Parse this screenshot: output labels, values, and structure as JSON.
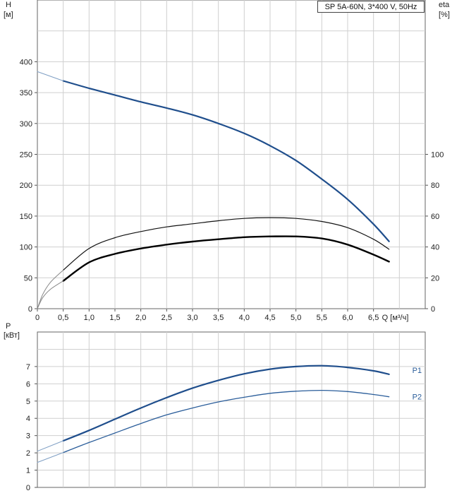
{
  "chart_data": [
    {
      "type": "line",
      "title": "SP 5A-60N, 3*400 V, 50Hz",
      "ylabel": "H",
      "yunit": "[м]",
      "y2label": "eta",
      "y2unit": "[%]",
      "xlabel": "Q [м³/ч]",
      "xlim": [
        0,
        7.5
      ],
      "ylim": [
        0,
        500
      ],
      "y2lim": [
        0,
        200
      ],
      "grid": true,
      "xticks": [
        "0",
        "0,5",
        "1,0",
        "1,5",
        "2,0",
        "2,5",
        "3,0",
        "3,5",
        "4,0",
        "4,5",
        "5,0",
        "5,5",
        "6,0",
        "6,5"
      ],
      "xtick_values": [
        0,
        0.5,
        1.0,
        1.5,
        2.0,
        2.5,
        3.0,
        3.5,
        4.0,
        4.5,
        5.0,
        5.5,
        6.0,
        6.5
      ],
      "yticks": [
        "0",
        "50",
        "100",
        "150",
        "200",
        "250",
        "300",
        "350",
        "400"
      ],
      "ytick_values": [
        0,
        50,
        100,
        150,
        200,
        250,
        300,
        350,
        400
      ],
      "y2ticks": [
        "0",
        "20",
        "40",
        "60",
        "80",
        "100"
      ],
      "y2tick_values": [
        0,
        20,
        40,
        60,
        80,
        100
      ],
      "series": [
        {
          "axis": "y",
          "color": "#1f4e8c",
          "width": 2.2,
          "x": [
            0.5,
            1.0,
            1.5,
            2.0,
            2.5,
            3.0,
            3.5,
            4.0,
            4.5,
            5.0,
            5.5,
            6.0,
            6.5,
            6.8
          ],
          "values": [
            369,
            357,
            346,
            335,
            325,
            314,
            300,
            284,
            264,
            240,
            210,
            177,
            137,
            109
          ]
        },
        {
          "axis": "y",
          "color": "#7f9fc4",
          "width": 1,
          "x": [
            0,
            0.5
          ],
          "values": [
            384,
            369
          ]
        },
        {
          "axis": "y2",
          "color": "#111111",
          "width": 1.2,
          "x": [
            0.5,
            1.0,
            1.5,
            2.0,
            2.5,
            3.0,
            3.5,
            4.0,
            4.5,
            5.0,
            5.5,
            6.0,
            6.5,
            6.8
          ],
          "values": [
            25,
            39,
            46,
            50,
            53,
            55,
            57,
            58.5,
            59,
            58.5,
            56.5,
            52.5,
            45,
            38.5
          ]
        },
        {
          "axis": "y2",
          "color": "#888888",
          "width": 1,
          "x": [
            0,
            0.1,
            0.25,
            0.5
          ],
          "values": [
            0,
            9,
            17,
            25
          ]
        },
        {
          "axis": "y2",
          "color": "#000000",
          "width": 2.4,
          "x": [
            0.5,
            1.0,
            1.5,
            2.0,
            2.5,
            3.0,
            3.5,
            4.0,
            4.5,
            5.0,
            5.5,
            6.0,
            6.5,
            6.8
          ],
          "values": [
            18,
            30,
            35.5,
            39,
            41.5,
            43.5,
            45,
            46.3,
            46.8,
            46.8,
            45.5,
            41.5,
            35,
            30.5
          ]
        },
        {
          "axis": "y2",
          "color": "#888888",
          "width": 1,
          "x": [
            0,
            0.1,
            0.25,
            0.5
          ],
          "values": [
            0,
            7,
            12.5,
            18
          ]
        }
      ]
    },
    {
      "type": "line",
      "ylabel": "P",
      "yunit": "[кВт]",
      "xlim": [
        0,
        7.5
      ],
      "ylim": [
        0,
        9
      ],
      "grid": true,
      "yticks": [
        "0",
        "1",
        "2",
        "3",
        "4",
        "5",
        "6",
        "7"
      ],
      "ytick_values": [
        0,
        1,
        2,
        3,
        4,
        5,
        6,
        7
      ],
      "series": [
        {
          "name": "P1",
          "color": "#1f4e8c",
          "width": 2.2,
          "x": [
            0.5,
            1.0,
            1.5,
            2.0,
            2.5,
            3.0,
            3.5,
            4.0,
            4.5,
            5.0,
            5.5,
            6.0,
            6.5,
            6.8
          ],
          "values": [
            2.7,
            3.3,
            3.95,
            4.6,
            5.2,
            5.75,
            6.2,
            6.58,
            6.85,
            7.0,
            7.05,
            6.95,
            6.75,
            6.55
          ]
        },
        {
          "color": "#7f9fc4",
          "width": 1,
          "x": [
            0,
            0.5
          ],
          "values": [
            2.1,
            2.7
          ]
        },
        {
          "name": "P2",
          "color": "#2a5d9a",
          "width": 1.3,
          "x": [
            0.5,
            1.0,
            1.5,
            2.0,
            2.5,
            3.0,
            3.5,
            4.0,
            4.5,
            5.0,
            5.5,
            6.0,
            6.5,
            6.8
          ],
          "values": [
            2.02,
            2.6,
            3.15,
            3.7,
            4.2,
            4.6,
            4.95,
            5.22,
            5.45,
            5.57,
            5.62,
            5.55,
            5.38,
            5.25
          ]
        },
        {
          "color": "#7f9fc4",
          "width": 1,
          "x": [
            0,
            0.5
          ],
          "values": [
            1.45,
            2.02
          ]
        }
      ]
    }
  ]
}
